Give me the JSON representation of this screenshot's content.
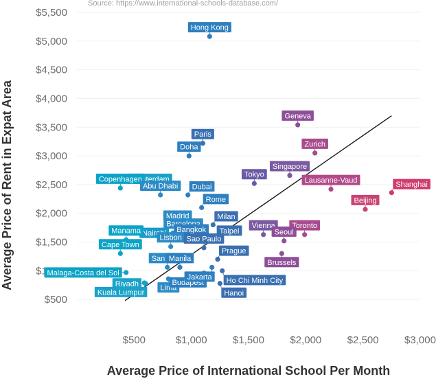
{
  "chart_data": {
    "type": "scatter",
    "source": "Source: https://www.international-schools-database.com/",
    "xlabel": "Average Price of International School Per Month",
    "ylabel": "Average Price of Rent in Expat Area",
    "xlim": [
      0,
      3000
    ],
    "ylim": [
      0,
      5500
    ],
    "x_ticks": [
      500,
      1000,
      1500,
      2000,
      2500,
      3000
    ],
    "x_tick_labels": [
      "$500",
      "$1,000",
      "$1,500",
      "$2,000",
      "$2,500",
      "$3,000"
    ],
    "y_ticks": [
      500,
      1000,
      1500,
      2000,
      2500,
      3000,
      3500,
      4000,
      4500,
      5000,
      5500
    ],
    "y_tick_labels": [
      "$500",
      "$1,000",
      "$1,500",
      "$2,000",
      "$2,500",
      "$3,000",
      "$3,500",
      "$4,000",
      "$4,500",
      "$5,000",
      "$5,500"
    ],
    "trendline": {
      "x": [
        420,
        2750
      ],
      "y": [
        480,
        3700
      ]
    },
    "points": [
      {
        "name": "Hong Kong",
        "x": 1160,
        "y": 5080,
        "color": "#2e7fbf",
        "anchor": "top"
      },
      {
        "name": "Paris",
        "x": 1100,
        "y": 3220,
        "color": "#3a6fb0",
        "anchor": "top"
      },
      {
        "name": "Doha",
        "x": 980,
        "y": 3000,
        "color": "#2e7fbf",
        "anchor": "top"
      },
      {
        "name": "Amsterdam",
        "x": 640,
        "y": 2440,
        "color": "#1aa2c8",
        "anchor": "top"
      },
      {
        "name": "Copenhagen",
        "x": 380,
        "y": 2440,
        "color": "#0ca3c7",
        "anchor": "top"
      },
      {
        "name": "Abu Dhabi",
        "x": 730,
        "y": 2320,
        "color": "#2e8bc6",
        "anchor": "top"
      },
      {
        "name": "Dubai",
        "x": 970,
        "y": 2320,
        "color": "#2e7fbf",
        "anchor": "topright"
      },
      {
        "name": "Rome",
        "x": 1090,
        "y": 2100,
        "color": "#2e7fbf",
        "anchor": "topright"
      },
      {
        "name": "Madrid",
        "x": 880,
        "y": 1800,
        "color": "#2e8bc6",
        "anchor": "top"
      },
      {
        "name": "Barcelona",
        "x": 930,
        "y": 1660,
        "color": "#2e8bc6",
        "anchor": "top"
      },
      {
        "name": "Milan",
        "x": 1190,
        "y": 1800,
        "color": "#3a6fb0",
        "anchor": "topright"
      },
      {
        "name": "Nairobi",
        "x": 840,
        "y": 1660,
        "color": "#1a9ac8",
        "anchor": "left"
      },
      {
        "name": "Bangkok",
        "x": 1000,
        "y": 1560,
        "color": "#2e7fbf",
        "anchor": "top"
      },
      {
        "name": "Taipei",
        "x": 1210,
        "y": 1550,
        "color": "#3a6fb0",
        "anchor": "topright"
      },
      {
        "name": "Manama",
        "x": 430,
        "y": 1540,
        "color": "#0ca3c7",
        "anchor": "top"
      },
      {
        "name": "Lisbon",
        "x": 820,
        "y": 1420,
        "color": "#2e8bc6",
        "anchor": "top"
      },
      {
        "name": "Cape Town",
        "x": 380,
        "y": 1300,
        "color": "#0ca3c7",
        "anchor": "top"
      },
      {
        "name": "Sao Paulo",
        "x": 1110,
        "y": 1400,
        "color": "#3a6fb0",
        "anchor": "top"
      },
      {
        "name": "Prague",
        "x": 1230,
        "y": 1200,
        "color": "#3a6fb0",
        "anchor": "topright"
      },
      {
        "name": "San Jose",
        "x": 790,
        "y": 1060,
        "color": "#2e8bc6",
        "anchor": "top"
      },
      {
        "name": "Manila",
        "x": 900,
        "y": 1060,
        "color": "#2e7fbf",
        "anchor": "top"
      },
      {
        "name": "Malaga-Costa del Sol",
        "x": 430,
        "y": 970,
        "color": "#0ca3c7",
        "anchor": "left"
      },
      {
        "name": "Riyadh",
        "x": 600,
        "y": 780,
        "color": "#1aa2c8",
        "anchor": "left"
      },
      {
        "name": "Kuala Lumpur",
        "x": 590,
        "y": 790,
        "color": "#1aa2c8",
        "anchor": "bottomleft"
      },
      {
        "name": "Lima",
        "x": 800,
        "y": 860,
        "color": "#2e8bc6",
        "anchor": "bottom"
      },
      {
        "name": "Budapest",
        "x": 1110,
        "y": 960,
        "color": "#2e7fbf",
        "anchor": "bottomleft"
      },
      {
        "name": "Jakarta",
        "x": 1180,
        "y": 1060,
        "color": "#2e7fbf",
        "anchor": "bottomleft"
      },
      {
        "name": "Hanoi",
        "x": 1250,
        "y": 780,
        "color": "#3a6fb0",
        "anchor": "bottomright"
      },
      {
        "name": "Ho Chi Minh City",
        "x": 1270,
        "y": 1000,
        "color": "#3a6fb0",
        "anchor": "bottomright"
      },
      {
        "name": "Geneva",
        "x": 1930,
        "y": 3540,
        "color": "#8e4f99",
        "anchor": "top"
      },
      {
        "name": "Zurich",
        "x": 2080,
        "y": 3050,
        "color": "#a84c8d",
        "anchor": "top"
      },
      {
        "name": "Tokyo",
        "x": 1550,
        "y": 2520,
        "color": "#6a5aa6",
        "anchor": "top"
      },
      {
        "name": "Singapore",
        "x": 1860,
        "y": 2660,
        "color": "#7a5aa0",
        "anchor": "top"
      },
      {
        "name": "Lausanne-Vaud",
        "x": 2220,
        "y": 2420,
        "color": "#b24a8a",
        "anchor": "top"
      },
      {
        "name": "Shanghai",
        "x": 2750,
        "y": 2360,
        "color": "#cf3c6d",
        "anchor": "topright"
      },
      {
        "name": "Beijing",
        "x": 2520,
        "y": 2070,
        "color": "#c84473",
        "anchor": "top"
      },
      {
        "name": "Toronto",
        "x": 1990,
        "y": 1630,
        "color": "#a84c8d",
        "anchor": "top"
      },
      {
        "name": "Vienna",
        "x": 1630,
        "y": 1630,
        "color": "#7a5aa0",
        "anchor": "top"
      },
      {
        "name": "Seoul",
        "x": 1810,
        "y": 1520,
        "color": "#8e4f99",
        "anchor": "top"
      },
      {
        "name": "Brussels",
        "x": 1790,
        "y": 1300,
        "color": "#8e4f99",
        "anchor": "bottom"
      }
    ]
  }
}
